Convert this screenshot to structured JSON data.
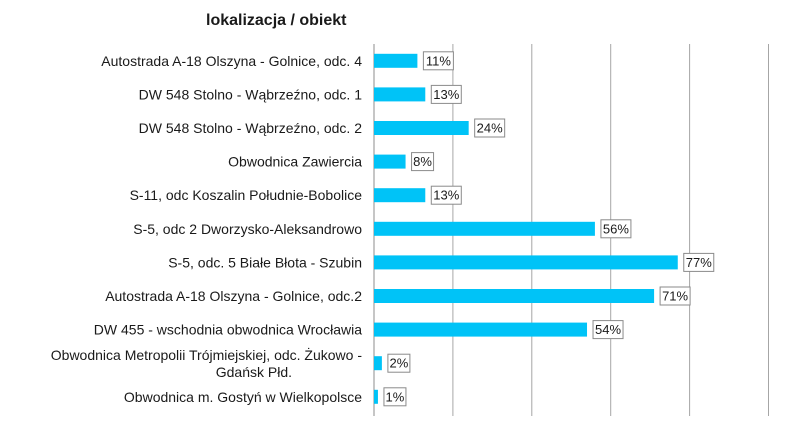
{
  "chart_data": {
    "type": "bar",
    "orientation": "horizontal",
    "title": "lokalizacja / obiekt",
    "categories": [
      "Autostrada A-18 Olszyna - Golnice, odc. 4",
      "DW 548 Stolno - Wąbrzeźno, odc. 1",
      "DW 548 Stolno - Wąbrzeźno, odc. 2",
      "Obwodnica Zawiercia",
      "S-11, odc Koszalin Południe-Bobolice",
      "S-5, odc 2 Dworzysko-Aleksandrowo",
      "S-5, odc. 5 Białe Błota - Szubin",
      "Autostrada A-18 Olszyna - Golnice, odc.2",
      "DW 455 - wschodnia obwodnica Wrocławia",
      "Obwodnica Metropolii Trójmiejskiej, odc. Żukowo - Gdańsk Płd.",
      "Obwodnica m. Gostyń w Wielkopolsce"
    ],
    "values": [
      11,
      13,
      24,
      8,
      13,
      56,
      77,
      71,
      54,
      2,
      1
    ],
    "data_labels": [
      "11%",
      "13%",
      "24%",
      "8%",
      "13%",
      "56%",
      "77%",
      "71%",
      "54%",
      "2%",
      "1%"
    ],
    "xlim": [
      0,
      100
    ],
    "grid": true,
    "bar_color": "#00c3f7",
    "gridline_color": "#a6a6a6",
    "label_box_border": "#8a8a8a"
  }
}
